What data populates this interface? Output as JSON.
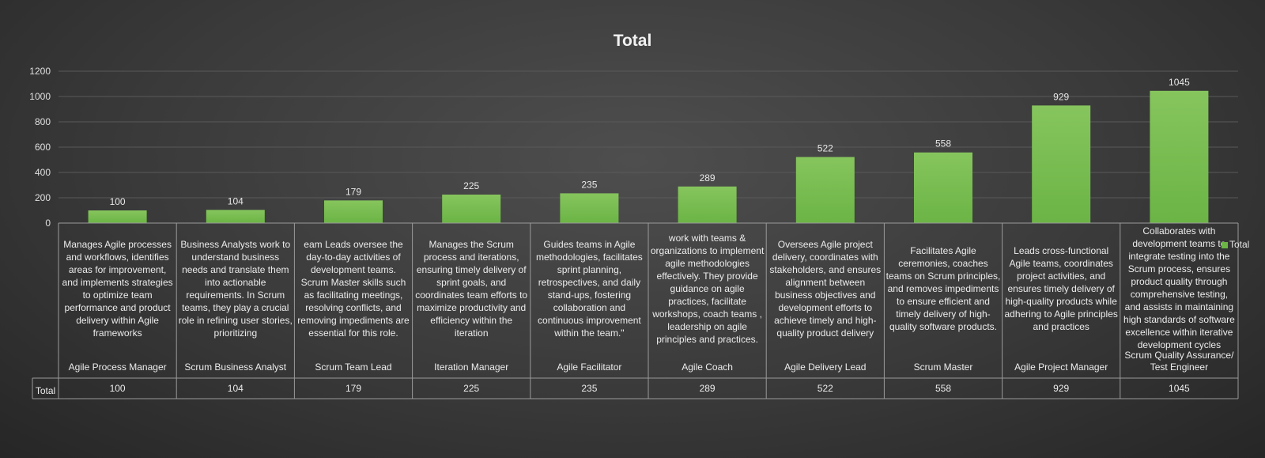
{
  "chart_data": {
    "type": "bar",
    "title": "Total",
    "ylim": [
      0,
      1200
    ],
    "yticks": [
      0,
      200,
      400,
      600,
      800,
      1000,
      1200
    ],
    "grid": true,
    "legend_position": "right",
    "row_label": "Total",
    "bar_color": "#6bb445",
    "series": [
      {
        "name": "Total",
        "values": [
          100,
          104,
          179,
          225,
          235,
          289,
          522,
          558,
          929,
          1045
        ]
      }
    ],
    "categories": [
      {
        "title": "Agile Process Manager",
        "description": "Manages Agile processes and workflows, identifies areas for improvement, and implements strategies to optimize team performance and product delivery within Agile frameworks"
      },
      {
        "title": "Scrum Business Analyst",
        "description": "Business Analysts work to understand business needs and translate them into actionable requirements. In Scrum teams, they play a crucial role in refining user stories, prioritizing"
      },
      {
        "title": "Scrum Team Lead",
        "description": "eam Leads oversee the day-to-day activities of development teams. Scrum Master skills such as facilitating meetings, resolving conflicts, and removing impediments are essential for this role."
      },
      {
        "title": "Iteration Manager",
        "description": "Manages the Scrum process and iterations, ensuring timely delivery of sprint goals, and coordinates team efforts to maximize productivity and efficiency within the iteration"
      },
      {
        "title": "Agile Facilitator",
        "description": "Guides teams in Agile methodologies, facilitates sprint planning, retrospectives, and daily stand-ups, fostering collaboration and continuous improvement within the team.\""
      },
      {
        "title": "Agile Coach",
        "description": "work with teams & organizations to implement agile methodologies effectively. They provide guidance on agile practices, facilitate workshops, coach teams , leadership on agile principles and practices."
      },
      {
        "title": "Agile Delivery Lead",
        "description": "Oversees Agile project delivery, coordinates with stakeholders, and ensures alignment between business objectives and development efforts to achieve timely and high-quality product delivery"
      },
      {
        "title": "Scrum Master",
        "description": "Facilitates Agile ceremonies, coaches teams on Scrum principles, and removes impediments to ensure efficient and timely delivery of high-quality software products."
      },
      {
        "title": "Agile Project Manager",
        "description": "Leads cross-functional Agile teams, coordinates project activities, and ensures timely delivery of high-quality products while adhering to Agile principles and practices"
      },
      {
        "title": "Scrum Quality Assurance/ Test Engineer",
        "description": "Collaborates with development teams to integrate testing into the Scrum process, ensures product quality through comprehensive testing, and assists in maintaining high standards of software excellence within iterative development cycles"
      }
    ]
  }
}
